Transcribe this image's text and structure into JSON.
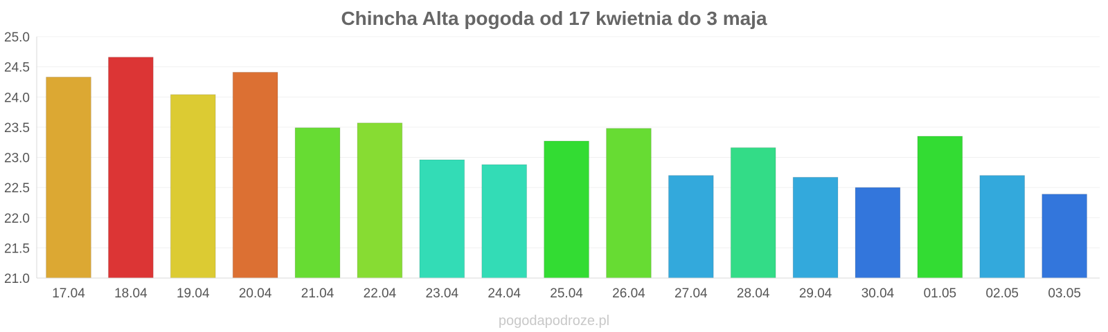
{
  "chart_data": {
    "type": "bar",
    "title": "Chincha Alta pogoda od 17 kwietnia do 3 maja",
    "footer": "pogodapodroze.pl",
    "categories": [
      "17.04",
      "18.04",
      "19.04",
      "20.04",
      "21.04",
      "22.04",
      "23.04",
      "24.04",
      "25.04",
      "26.04",
      "27.04",
      "28.04",
      "29.04",
      "30.04",
      "01.05",
      "02.05",
      "03.05"
    ],
    "values": [
      24.33,
      24.66,
      24.04,
      24.41,
      23.49,
      23.57,
      22.96,
      22.88,
      23.27,
      23.48,
      22.7,
      23.16,
      22.67,
      22.5,
      23.35,
      22.7,
      22.39
    ],
    "colors": [
      "#dca833",
      "#dc3535",
      "#dccb33",
      "#dc7033",
      "#67dc33",
      "#87dc33",
      "#33dcb6",
      "#33dcb6",
      "#33dc33",
      "#67dc33",
      "#33a9dc",
      "#33dc87",
      "#33a9dc",
      "#3376dc",
      "#33dc33",
      "#33a9dc",
      "#3376dc"
    ],
    "yticks": [
      "25.0",
      "24.5",
      "24.0",
      "23.5",
      "23.0",
      "22.5",
      "22.0",
      "21.5",
      "21.0"
    ],
    "ylim": [
      21.0,
      25.0
    ],
    "grid": true
  }
}
